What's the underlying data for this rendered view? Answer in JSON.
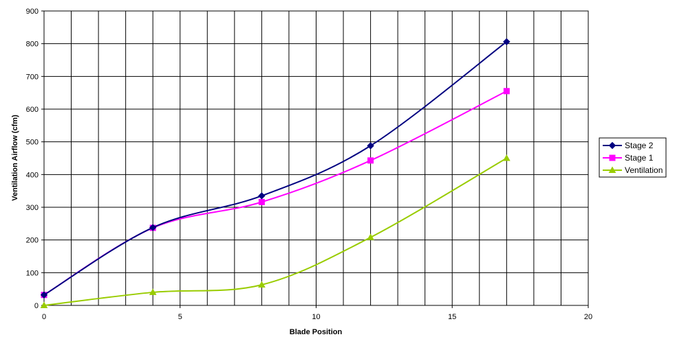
{
  "chart_data": {
    "type": "line",
    "title": "",
    "xlabel": "Blade Position",
    "ylabel": "Ventilation Airflow (cfm)",
    "xlim": [
      0,
      20
    ],
    "ylim": [
      0,
      900
    ],
    "x_ticks": [
      0,
      5,
      10,
      15,
      20
    ],
    "y_ticks": [
      0,
      100,
      200,
      300,
      400,
      500,
      600,
      700,
      800,
      900
    ],
    "x_minor_step": 1,
    "grid": true,
    "smooth": true,
    "legend_position": "right",
    "series": [
      {
        "name": "Stage 2",
        "color": "#000080",
        "marker": "diamond",
        "points": [
          [
            0,
            32
          ],
          [
            4,
            238
          ],
          [
            8,
            335
          ],
          [
            12,
            488
          ],
          [
            17,
            806
          ]
        ]
      },
      {
        "name": "Stage 1",
        "color": "#FF00FF",
        "marker": "square",
        "points": [
          [
            0,
            32
          ],
          [
            4,
            237
          ],
          [
            8,
            316
          ],
          [
            12,
            443
          ],
          [
            17,
            655
          ]
        ]
      },
      {
        "name": "Ventilation",
        "color": "#99CC00",
        "marker": "triangle",
        "points": [
          [
            0,
            0
          ],
          [
            4,
            40
          ],
          [
            8,
            63
          ],
          [
            12,
            208
          ],
          [
            17,
            450
          ]
        ]
      }
    ]
  }
}
